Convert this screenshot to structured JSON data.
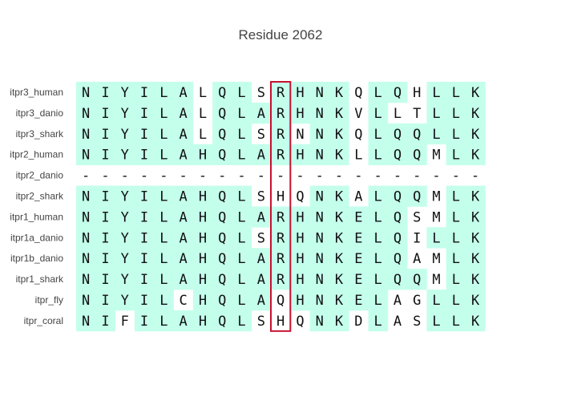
{
  "chart_data": {
    "type": "table",
    "title": "Residue 2062",
    "rows": [
      {
        "name": "itpr3_human",
        "sequence": "NIYILALQLSRHNKQLQHLLK"
      },
      {
        "name": "itpr3_danio",
        "sequence": "NIYILALQLARHNKVLLTLLK"
      },
      {
        "name": "itpr3_shark",
        "sequence": "NIYILALQLSRNNKQLQQLLK"
      },
      {
        "name": "itpr2_human",
        "sequence": "NIYILAHQLARHNKLLQQMLK"
      },
      {
        "name": "itpr2_danio",
        "sequence": "---------------------"
      },
      {
        "name": "itpr2_shark",
        "sequence": "NIYILAHQLSHQNKALQQMLK"
      },
      {
        "name": "itpr1_human",
        "sequence": "NIYILAHQLARHNKELQSMLK"
      },
      {
        "name": "itpr1a_danio",
        "sequence": "NIYILAHQLSRHNKELQILLK"
      },
      {
        "name": "itpr1b_danio",
        "sequence": "NIYILAHQLARHNKELQAMLK"
      },
      {
        "name": "itpr1_shark",
        "sequence": "NIYILAHQLARHNKELQQMLK"
      },
      {
        "name": "itpr_fly",
        "sequence": "NIYILCHQLAQHNKELAGLLK"
      },
      {
        "name": "itpr_coral",
        "sequence": "NIFILAHQLSHQNKDLASLLK"
      }
    ],
    "highlighted_column": 10,
    "conserved_color": "#c4ffec",
    "highlight_box_color": "#c8102e"
  }
}
